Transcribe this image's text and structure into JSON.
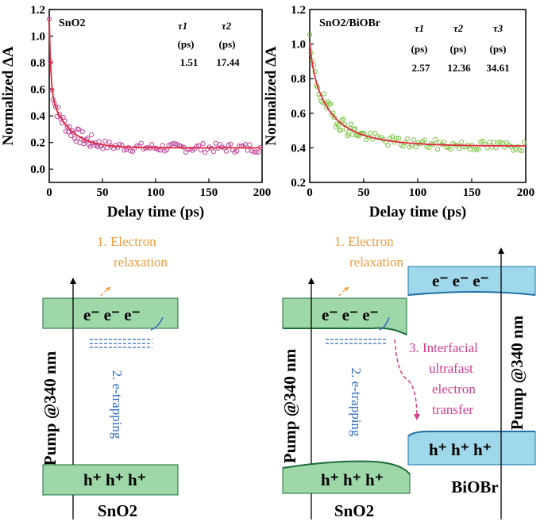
{
  "chart_data": [
    {
      "type": "scatter",
      "title": "SnO2",
      "xlabel": "Delay time (ps)",
      "ylabel": "Normalized ΔA",
      "xlim": [
        0,
        200
      ],
      "ylim": [
        -0.1,
        1.2
      ],
      "xticks": [
        "0",
        "50",
        "100",
        "150",
        "200"
      ],
      "yticks": [
        "0.0",
        "0.2",
        "0.4",
        "0.6",
        "0.8",
        "1.0",
        "1.2"
      ],
      "marker_color": "#c0449a",
      "fit_color": "#e0283c",
      "fit": {
        "components": [
          {
            "a": 0.55,
            "tau": 1.51
          },
          {
            "a": 0.42,
            "tau": 17.44
          }
        ],
        "offset": 0.16
      },
      "table": {
        "headers": [
          "τ1",
          "τ2"
        ],
        "units": [
          "(ps)",
          "(ps)"
        ],
        "values": [
          "1.51",
          "17.44"
        ]
      }
    },
    {
      "type": "scatter",
      "title": "SnO2/BiOBr",
      "xlabel": "Delay time (ps)",
      "ylabel": "Normalized ΔA",
      "xlim": [
        0,
        200
      ],
      "ylim": [
        0.2,
        1.2
      ],
      "xticks": [
        "0",
        "50",
        "100",
        "150",
        "200"
      ],
      "yticks": [
        "0.2",
        "0.4",
        "0.6",
        "0.8",
        "1.0",
        "1.2"
      ],
      "marker_color": "#7cc443",
      "fit_color": "#e0283c",
      "fit": {
        "components": [
          {
            "a": 0.1,
            "tau": 2.57
          },
          {
            "a": 0.25,
            "tau": 12.36
          },
          {
            "a": 0.25,
            "tau": 34.61
          }
        ],
        "offset": 0.41
      },
      "table": {
        "headers": [
          "τ1",
          "τ2",
          "τ3"
        ],
        "units": [
          "(ps)",
          "(ps)",
          "(ps)"
        ],
        "values": [
          "2.57",
          "12.36",
          "34.61"
        ]
      }
    }
  ],
  "diagram_left": {
    "step1": [
      "1. Electron",
      "relaxation"
    ],
    "electrons": "e⁻ e⁻ e⁻",
    "holes": "h⁺ h⁺ h⁺",
    "step2": "2. e-trapping",
    "pump": "Pump @340 nm",
    "material": "SnO2"
  },
  "diagram_right": {
    "step1": [
      "1. Electron",
      "relaxation"
    ],
    "electrons": "e⁻ e⁻ e⁻",
    "holes": "h⁺ h⁺ h⁺",
    "step2": "2. e-trapping",
    "step3": [
      "3. Interfacial",
      "ultrafast",
      "electron",
      "transfer"
    ],
    "pump_left": "Pump @340 nm",
    "pump_right": "Pump @340 nm",
    "material_left": "SnO2",
    "bi_electrons": "e⁻ e⁻ e⁻",
    "bi_holes": "h⁺ h⁺ h⁺",
    "material_right": "BiOBr"
  },
  "colors": {
    "band_green": "#9fd8a8",
    "band_blue": "#9fd8ea",
    "orange": "#f39a3a",
    "blue_text": "#2f6bc1",
    "magenta": "#d43c8e"
  }
}
